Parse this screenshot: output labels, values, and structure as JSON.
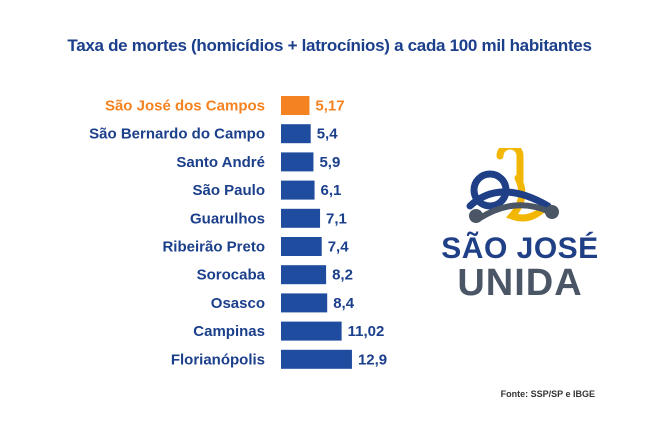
{
  "chart_data": {
    "type": "bar",
    "orientation": "horizontal",
    "title": "Taxa de mortes (homicídios + latrocínios) a cada 100 mil habitantes",
    "categories": [
      "São José dos Campos",
      "São Bernardo do Campo",
      "Santo André",
      "São Paulo",
      "Guarulhos",
      "Ribeirão Preto",
      "Sorocaba",
      "Osasco",
      "Campinas",
      "Florianópolis"
    ],
    "values": [
      5.17,
      5.4,
      5.9,
      6.1,
      7.1,
      7.4,
      8.2,
      8.4,
      11.02,
      12.9
    ],
    "value_labels": [
      "5,17",
      "5,4",
      "5,9",
      "6,1",
      "7,1",
      "7,4",
      "8,2",
      "8,4",
      "11,02",
      "12,9"
    ],
    "highlight_index": 0,
    "colors": {
      "highlight": "#f58220",
      "default": "#1f4c9e"
    },
    "xlabel": "",
    "ylabel": "",
    "grid": false,
    "legend": "none"
  },
  "logo": {
    "line1": "SÃO JOSÉ",
    "line2": "UNIDA",
    "icon": "sao-jose-unida-logo-icon",
    "colors": {
      "blue": "#1f3f86",
      "gray": "#4a5566",
      "yellow": "#f2b705"
    }
  },
  "source": "Fonte: SSP/SP e IBGE"
}
